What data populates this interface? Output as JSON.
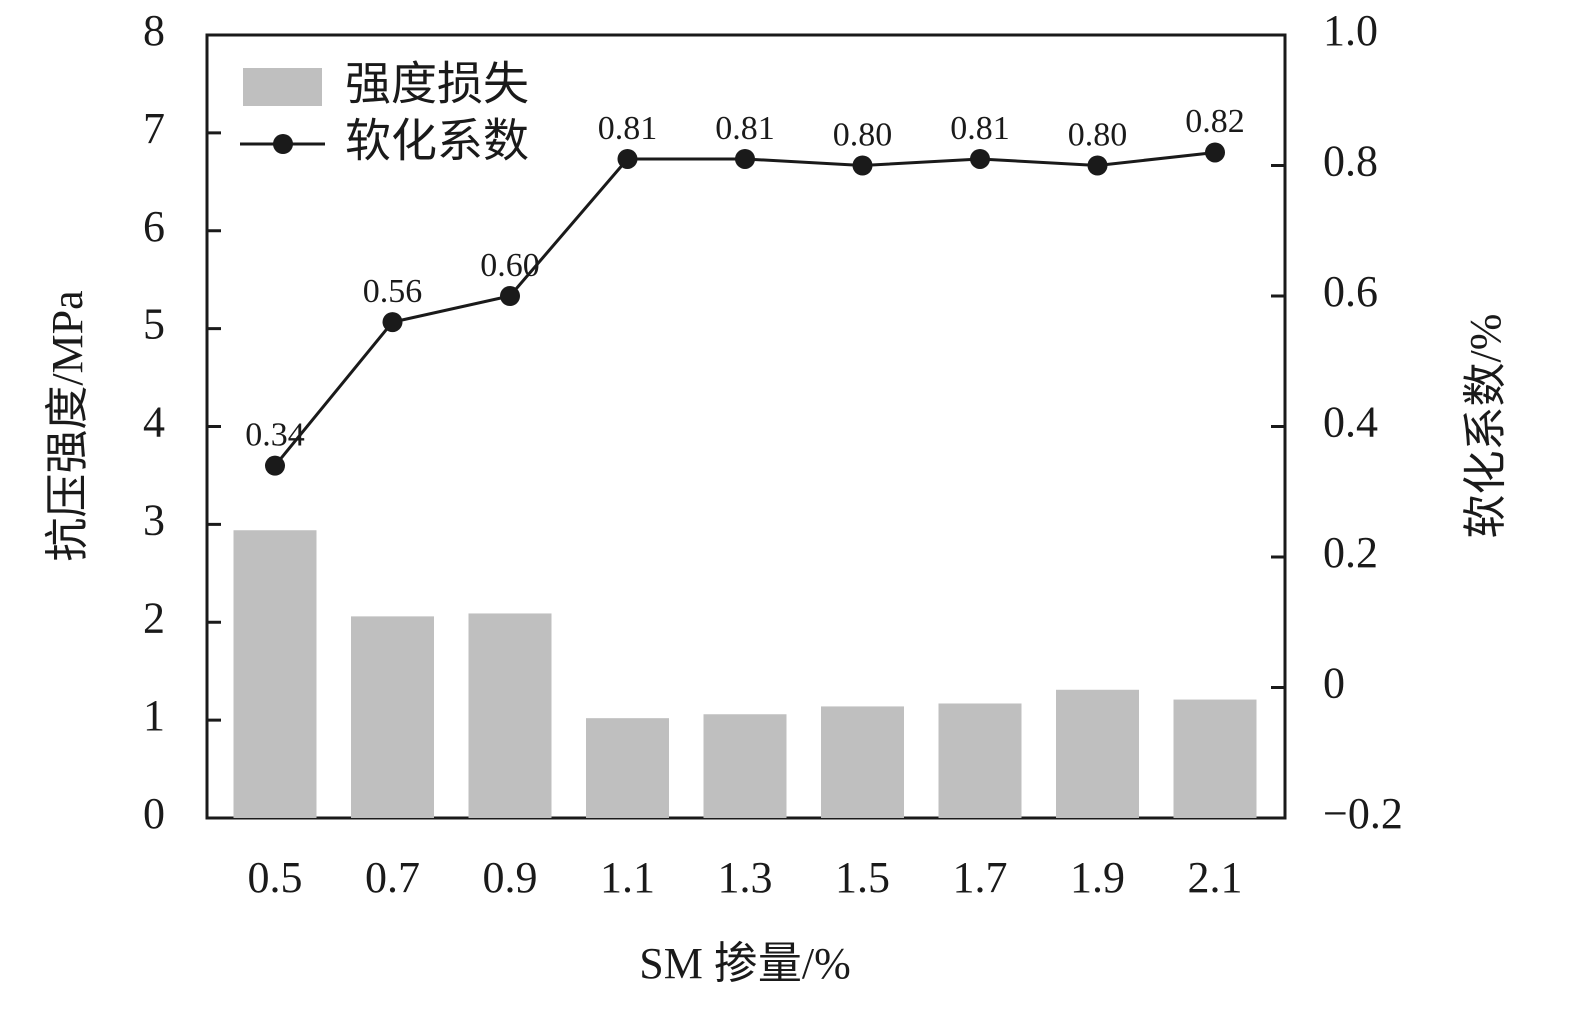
{
  "chart_data": {
    "type": "bar_line",
    "xlabel": "SM 掺量/%",
    "ylabel": "抗压强度/MPa",
    "y2label": "软化系数/%",
    "categories": [
      "0.5",
      "0.7",
      "0.9",
      "1.1",
      "1.3",
      "1.5",
      "1.7",
      "1.9",
      "2.1"
    ],
    "series": [
      {
        "name": "强度损失",
        "type": "bar",
        "color": "#bfbfbf",
        "values": [
          2.94,
          2.06,
          2.09,
          1.02,
          1.06,
          1.14,
          1.17,
          1.31,
          1.21
        ]
      },
      {
        "name": "软化系数",
        "type": "line",
        "axis": "y2",
        "color": "#1a1a1a",
        "values": [
          0.34,
          0.56,
          0.6,
          0.81,
          0.81,
          0.8,
          0.81,
          0.8,
          0.82
        ],
        "value_labels": [
          "0.34",
          "0.56",
          "0.60",
          "0.81",
          "0.81",
          "0.80",
          "0.81",
          "0.80",
          "0.82"
        ]
      }
    ],
    "ylim": [
      0,
      8
    ],
    "yticks": [
      0,
      1,
      2,
      3,
      4,
      5,
      6,
      7,
      8
    ],
    "y2lim": [
      -0.2,
      1.0
    ],
    "y2ticks": [
      {
        "value": -0.2,
        "label": "−0.2"
      },
      0,
      0.2,
      0.4,
      0.6,
      0.8,
      {
        "value": 1.0,
        "label": "1.0"
      }
    ],
    "legend": "upper-left"
  }
}
